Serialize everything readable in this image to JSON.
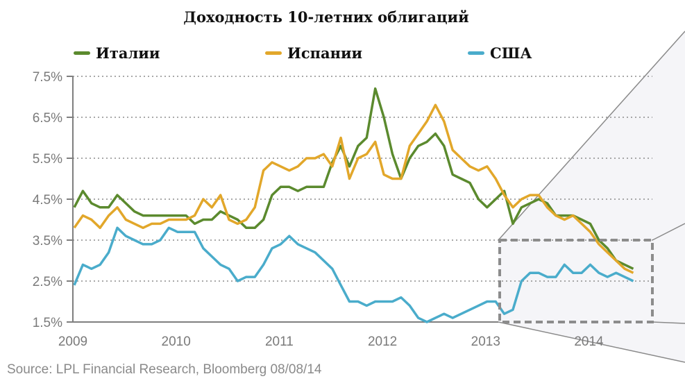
{
  "title": "Доходность 10-летних облигаций",
  "legend": [
    {
      "label": "Италии",
      "color": "#5b8a2e"
    },
    {
      "label": "Испании",
      "color": "#e2a72a"
    },
    {
      "label": "США",
      "color": "#4aaccb"
    }
  ],
  "source": "Source: LPL Financial Research, Bloomberg   08/08/14",
  "chart_data": {
    "type": "line",
    "title": "Доходность 10-летних облигаций",
    "xlabel": "",
    "ylabel": "",
    "ylim": [
      1.5,
      7.5
    ],
    "yticks": [
      "7.5%",
      "6.5%",
      "5.5%",
      "4.5%",
      "3.5%",
      "2.5%",
      "1.5%"
    ],
    "xticks": [
      "2009",
      "2010",
      "2011",
      "2012",
      "2013",
      "2014"
    ],
    "grid": "horizontal dotted",
    "legend_position": "top",
    "x_start": "2009-01",
    "x_step": "month",
    "series": [
      {
        "name": "Италии",
        "color": "#5b8a2e",
        "values": [
          4.3,
          4.7,
          4.4,
          4.3,
          4.3,
          4.6,
          4.4,
          4.2,
          4.1,
          4.1,
          4.1,
          4.1,
          4.1,
          4.1,
          3.9,
          4.0,
          4.0,
          4.2,
          4.1,
          4.0,
          3.8,
          3.8,
          4.0,
          4.6,
          4.8,
          4.8,
          4.7,
          4.8,
          4.8,
          4.8,
          5.4,
          5.8,
          5.3,
          5.8,
          6.0,
          7.2,
          6.5,
          5.6,
          5.0,
          5.5,
          5.8,
          5.9,
          6.1,
          5.8,
          5.1,
          5.0,
          4.9,
          4.5,
          4.3,
          4.5,
          4.7,
          3.9,
          4.3,
          4.4,
          4.5,
          4.4,
          4.1,
          4.1,
          4.1,
          4.0,
          3.9,
          3.5,
          3.3,
          3.0,
          2.9,
          2.8
        ]
      },
      {
        "name": "Испании",
        "color": "#e2a72a",
        "values": [
          3.8,
          4.1,
          4.0,
          3.8,
          4.1,
          4.3,
          4.0,
          3.9,
          3.8,
          3.9,
          3.9,
          4.0,
          4.0,
          4.0,
          4.1,
          4.5,
          4.3,
          4.6,
          4.0,
          3.9,
          4.0,
          4.3,
          5.2,
          5.4,
          5.3,
          5.2,
          5.3,
          5.5,
          5.5,
          5.6,
          5.3,
          6.0,
          5.0,
          5.5,
          5.6,
          5.9,
          5.1,
          5.0,
          5.0,
          5.8,
          6.1,
          6.4,
          6.8,
          6.4,
          5.7,
          5.5,
          5.3,
          5.2,
          5.3,
          5.0,
          4.6,
          4.3,
          4.5,
          4.6,
          4.6,
          4.3,
          4.1,
          4.0,
          4.1,
          3.9,
          3.7,
          3.4,
          3.2,
          3.0,
          2.8,
          2.7
        ]
      },
      {
        "name": "США",
        "color": "#4aaccb",
        "values": [
          2.4,
          2.9,
          2.8,
          2.9,
          3.2,
          3.8,
          3.6,
          3.5,
          3.4,
          3.4,
          3.5,
          3.8,
          3.7,
          3.7,
          3.7,
          3.3,
          3.1,
          2.9,
          2.8,
          2.5,
          2.6,
          2.6,
          2.9,
          3.3,
          3.4,
          3.6,
          3.4,
          3.3,
          3.2,
          3.0,
          2.8,
          2.4,
          2.0,
          2.0,
          1.9,
          2.0,
          2.0,
          2.0,
          2.1,
          1.9,
          1.6,
          1.5,
          1.6,
          1.7,
          1.6,
          1.7,
          1.8,
          1.9,
          2.0,
          2.0,
          1.7,
          1.8,
          2.5,
          2.7,
          2.7,
          2.6,
          2.6,
          2.9,
          2.7,
          2.7,
          2.9,
          2.7,
          2.6,
          2.7,
          2.6,
          2.5
        ]
      }
    ]
  }
}
